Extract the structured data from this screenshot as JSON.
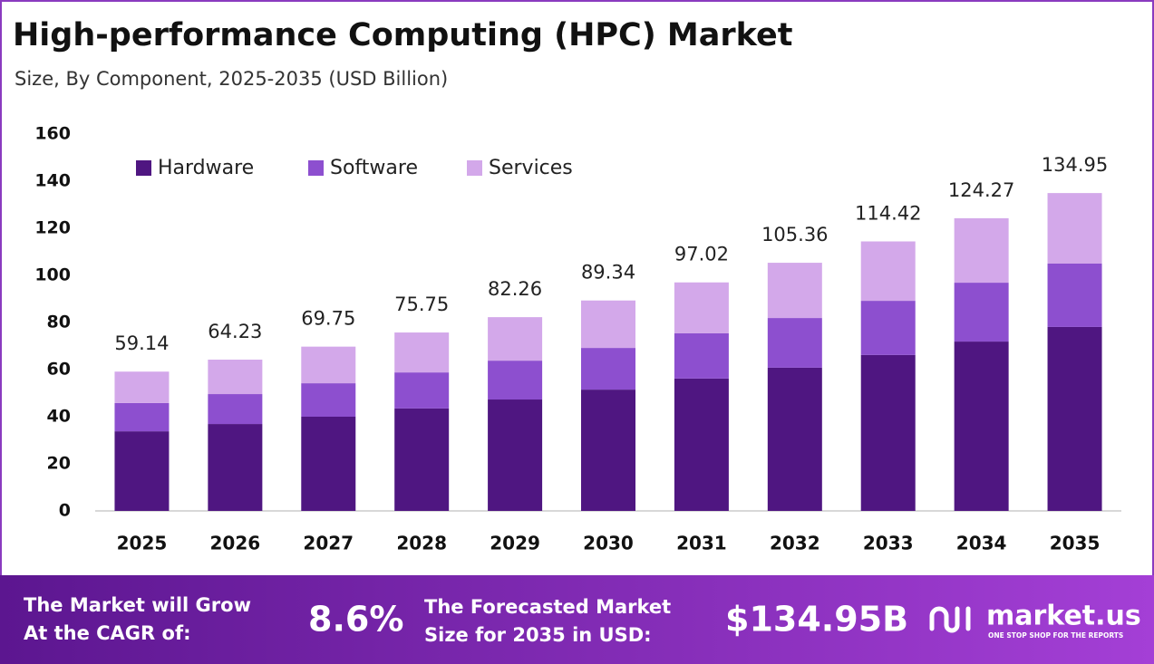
{
  "chart_data": {
    "type": "stacked-bar",
    "title": "High-performance Computing (HPC) Market",
    "subtitle": "Size, By Component, 2025-2035 (USD Billion)",
    "categories": [
      "2025",
      "2026",
      "2027",
      "2028",
      "2029",
      "2030",
      "2031",
      "2032",
      "2033",
      "2034",
      "2035"
    ],
    "series": [
      {
        "name": "Hardware",
        "color": "#4f1681",
        "values": [
          33.8,
          36.9,
          40.0,
          43.5,
          47.3,
          51.5,
          56.2,
          60.8,
          66.2,
          71.9,
          78.1
        ]
      },
      {
        "name": "Software",
        "color": "#8d4fcf",
        "values": [
          12.0,
          12.7,
          14.2,
          15.3,
          16.5,
          17.7,
          19.2,
          21.1,
          23.0,
          25.0,
          26.9
        ]
      },
      {
        "name": "Services",
        "color": "#d3a8ea",
        "values": [
          13.34,
          14.63,
          15.55,
          16.95,
          18.46,
          20.14,
          21.62,
          23.46,
          25.22,
          27.37,
          29.95
        ]
      }
    ],
    "totals": [
      59.14,
      64.23,
      69.75,
      75.75,
      82.26,
      89.34,
      97.02,
      105.36,
      114.42,
      124.27,
      134.95
    ],
    "ylim": [
      0,
      160
    ],
    "yticks": [
      0,
      20,
      40,
      60,
      80,
      100,
      120,
      140,
      160
    ],
    "grid": false,
    "legend": "top-left"
  },
  "footer": {
    "cagr_label": [
      "The Market will Grow",
      "At the CAGR of:"
    ],
    "cagr": "8.6%",
    "forecast_label": [
      "The Forecasted Market",
      "Size for 2035 in USD:"
    ],
    "forecast": "$134.95B",
    "brand": "market.us",
    "tagline": "ONE STOP SHOP FOR THE REPORTS"
  }
}
